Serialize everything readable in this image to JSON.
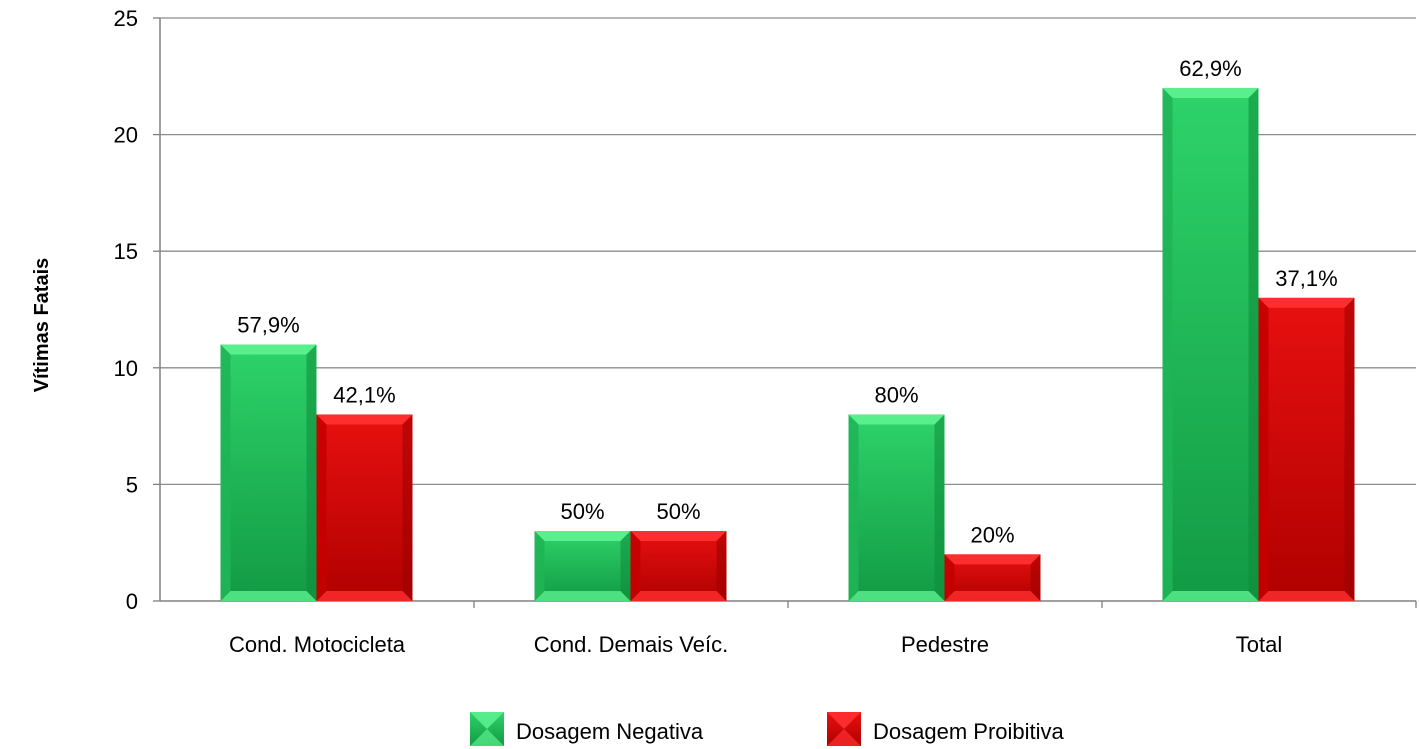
{
  "chart_data": {
    "type": "bar",
    "categories": [
      "Cond. Motocicleta",
      "Cond. Demais Veíc.",
      "Pedestre",
      "Total"
    ],
    "series": [
      {
        "name": "Dosagem Negativa",
        "values": [
          11,
          3,
          8,
          22
        ],
        "labels": [
          "57,9%",
          "50%",
          "80%",
          "62,9%"
        ],
        "color": "#1bbf55"
      },
      {
        "name": "Dosagem Proibitiva",
        "values": [
          8,
          3,
          2,
          13
        ],
        "labels": [
          "42,1%",
          "50%",
          "20%",
          "37,1%"
        ],
        "color": "#d40000"
      }
    ],
    "ylabel": "Vítimas Fatais",
    "xlabel": "",
    "ylim": [
      0,
      25
    ],
    "yticks": [
      0,
      5,
      10,
      15,
      20,
      25
    ],
    "grid": true,
    "legend": "bottom"
  }
}
